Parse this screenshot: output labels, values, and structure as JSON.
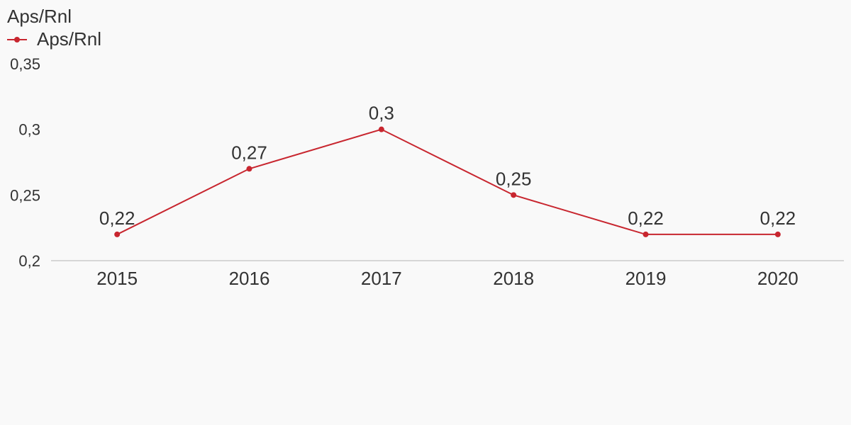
{
  "chart_data": {
    "type": "line",
    "title": "Aps/Rnl",
    "xlabel": "",
    "ylabel": "",
    "categories": [
      "2015",
      "2016",
      "2017",
      "2018",
      "2019",
      "2020"
    ],
    "series": [
      {
        "name": "Aps/Rnl",
        "values": [
          0.22,
          0.27,
          0.3,
          0.25,
          0.22,
          0.22
        ],
        "labels": [
          "0,22",
          "0,27",
          "0,3",
          "0,25",
          "0,22",
          "0,22"
        ],
        "color": "#c8262f"
      }
    ],
    "ylim": [
      0.2,
      0.35
    ],
    "yticks": [
      {
        "value": 0.2,
        "label": "0,2"
      },
      {
        "value": 0.25,
        "label": "0,25"
      },
      {
        "value": 0.3,
        "label": "0,3"
      },
      {
        "value": 0.35,
        "label": "0,35"
      }
    ],
    "grid": false,
    "legend_position": "top-left",
    "colors": {
      "background": "#f9f9f9",
      "text": "#333333",
      "axis": "#d6d6d6",
      "series": "#c8262f"
    }
  }
}
